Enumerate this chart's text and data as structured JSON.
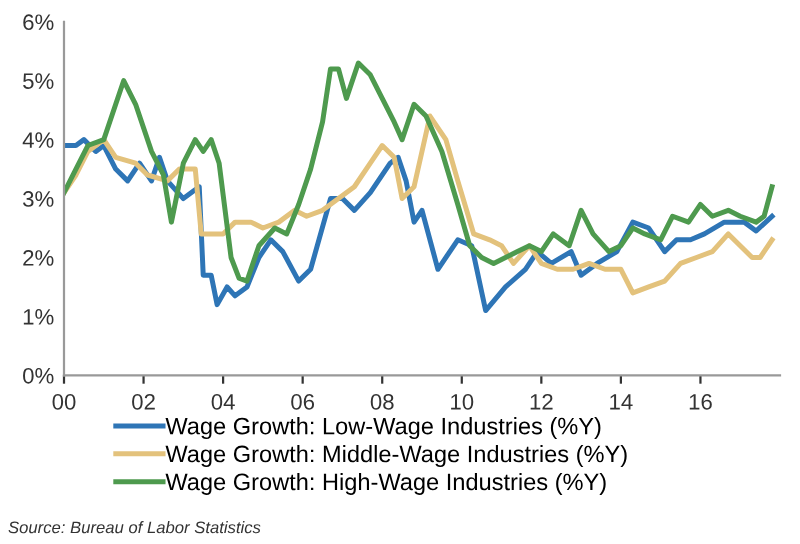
{
  "chart_data": {
    "type": "line",
    "xlim": [
      2000,
      2018
    ],
    "ylim": [
      0,
      6
    ],
    "xticks": [
      {
        "value": 2000,
        "label": "00"
      },
      {
        "value": 2002,
        "label": "02"
      },
      {
        "value": 2004,
        "label": "04"
      },
      {
        "value": 2006,
        "label": "06"
      },
      {
        "value": 2008,
        "label": "08"
      },
      {
        "value": 2010,
        "label": "10"
      },
      {
        "value": 2012,
        "label": "12"
      },
      {
        "value": 2014,
        "label": "14"
      },
      {
        "value": 2016,
        "label": "16"
      }
    ],
    "yticks": [
      {
        "value": 0,
        "label": "0%"
      },
      {
        "value": 1,
        "label": "1%"
      },
      {
        "value": 2,
        "label": "2%"
      },
      {
        "value": 3,
        "label": "3%"
      },
      {
        "value": 4,
        "label": "4%"
      },
      {
        "value": 5,
        "label": "5%"
      },
      {
        "value": 6,
        "label": "6%"
      }
    ],
    "grid": false,
    "legend": "bottom",
    "marker": "none",
    "line_style": "solid",
    "series": [
      {
        "name": "Wage Growth: Low-Wage Industries (%Y)",
        "color": "#2e75b6",
        "x": [
          2000.0,
          2000.3,
          2000.5,
          2000.8,
          2001.0,
          2001.3,
          2001.6,
          2001.9,
          2002.2,
          2002.4,
          2002.6,
          2003.0,
          2003.4,
          2003.5,
          2003.7,
          2003.85,
          2004.1,
          2004.3,
          2004.6,
          2004.9,
          2005.2,
          2005.5,
          2005.9,
          2006.2,
          2006.7,
          2007.0,
          2007.3,
          2007.7,
          2008.2,
          2008.4,
          2008.6,
          2008.8,
          2009.0,
          2009.4,
          2009.9,
          2010.25,
          2010.6,
          2011.1,
          2011.6,
          2011.9,
          2012.25,
          2012.75,
          2013.0,
          2013.4,
          2013.9,
          2014.3,
          2014.7,
          2015.1,
          2015.4,
          2015.75,
          2016.1,
          2016.6,
          2017.1,
          2017.4,
          2017.8
        ],
        "values": [
          3.9,
          3.9,
          4.0,
          3.8,
          3.9,
          3.5,
          3.3,
          3.6,
          3.3,
          3.7,
          3.3,
          3.0,
          3.2,
          1.7,
          1.7,
          1.2,
          1.5,
          1.35,
          1.5,
          2.0,
          2.3,
          2.1,
          1.6,
          1.8,
          3.0,
          3.0,
          2.8,
          3.1,
          3.6,
          3.7,
          3.3,
          2.6,
          2.8,
          1.8,
          2.3,
          2.2,
          1.1,
          1.5,
          1.8,
          2.1,
          1.9,
          2.1,
          1.7,
          1.9,
          2.1,
          2.6,
          2.5,
          2.1,
          2.3,
          2.3,
          2.4,
          2.6,
          2.6,
          2.45,
          2.7
        ]
      },
      {
        "name": "Wage Growth: Middle-Wage Industries (%Y)",
        "color": "#e3c27c",
        "x": [
          2000.0,
          2000.3,
          2000.6,
          2001.0,
          2001.3,
          2001.8,
          2002.1,
          2002.6,
          2002.9,
          2003.3,
          2003.45,
          2003.7,
          2004.0,
          2004.3,
          2004.7,
          2005.0,
          2005.4,
          2005.8,
          2006.1,
          2006.5,
          2006.9,
          2007.3,
          2007.7,
          2008.0,
          2008.3,
          2008.5,
          2008.8,
          2009.2,
          2009.6,
          2009.9,
          2010.3,
          2010.7,
          2011.0,
          2011.3,
          2011.7,
          2012.0,
          2012.4,
          2012.8,
          2013.2,
          2013.6,
          2014.0,
          2014.3,
          2014.7,
          2015.1,
          2015.5,
          2015.9,
          2016.3,
          2016.7,
          2017.0,
          2017.3,
          2017.5,
          2017.8
        ],
        "values": [
          3.1,
          3.4,
          3.8,
          4.0,
          3.7,
          3.6,
          3.4,
          3.3,
          3.5,
          3.5,
          2.4,
          2.4,
          2.4,
          2.6,
          2.6,
          2.5,
          2.6,
          2.8,
          2.7,
          2.8,
          3.0,
          3.2,
          3.6,
          3.9,
          3.7,
          3.0,
          3.2,
          4.4,
          4.0,
          3.3,
          2.4,
          2.3,
          2.2,
          1.9,
          2.2,
          1.9,
          1.8,
          1.8,
          1.9,
          1.8,
          1.8,
          1.4,
          1.5,
          1.6,
          1.9,
          2.0,
          2.1,
          2.4,
          2.2,
          2.0,
          2.0,
          2.3
        ]
      },
      {
        "name": "Wage Growth: High-Wage Industries (%Y)",
        "color": "#4e9a4e",
        "x": [
          2000.0,
          2000.3,
          2000.6,
          2001.0,
          2001.3,
          2001.5,
          2001.8,
          2002.2,
          2002.5,
          2002.7,
          2003.0,
          2003.3,
          2003.5,
          2003.7,
          2003.9,
          2004.2,
          2004.4,
          2004.6,
          2004.9,
          2005.3,
          2005.6,
          2005.9,
          2006.2,
          2006.5,
          2006.7,
          2006.9,
          2007.1,
          2007.4,
          2007.7,
          2008.0,
          2008.3,
          2008.5,
          2008.8,
          2009.1,
          2009.5,
          2009.9,
          2010.2,
          2010.5,
          2010.8,
          2011.1,
          2011.4,
          2011.7,
          2012.0,
          2012.3,
          2012.7,
          2013.0,
          2013.3,
          2013.7,
          2014.0,
          2014.3,
          2014.6,
          2015.0,
          2015.3,
          2015.7,
          2016.0,
          2016.3,
          2016.7,
          2017.0,
          2017.4,
          2017.6,
          2017.8
        ],
        "values": [
          3.1,
          3.5,
          3.9,
          4.0,
          4.6,
          5.0,
          4.6,
          3.8,
          3.4,
          2.6,
          3.6,
          4.0,
          3.8,
          4.0,
          3.6,
          2.0,
          1.65,
          1.6,
          2.2,
          2.5,
          2.4,
          2.9,
          3.5,
          4.3,
          5.2,
          5.2,
          4.7,
          5.3,
          5.1,
          4.7,
          4.3,
          4.0,
          4.6,
          4.4,
          3.8,
          2.9,
          2.2,
          2.0,
          1.9,
          2.0,
          2.1,
          2.2,
          2.1,
          2.4,
          2.2,
          2.8,
          2.4,
          2.1,
          2.2,
          2.5,
          2.4,
          2.3,
          2.7,
          2.6,
          2.9,
          2.7,
          2.8,
          2.7,
          2.6,
          2.7,
          3.2
        ]
      }
    ],
    "annotations": [
      "Source: Bureau of Labor Statistics"
    ]
  }
}
